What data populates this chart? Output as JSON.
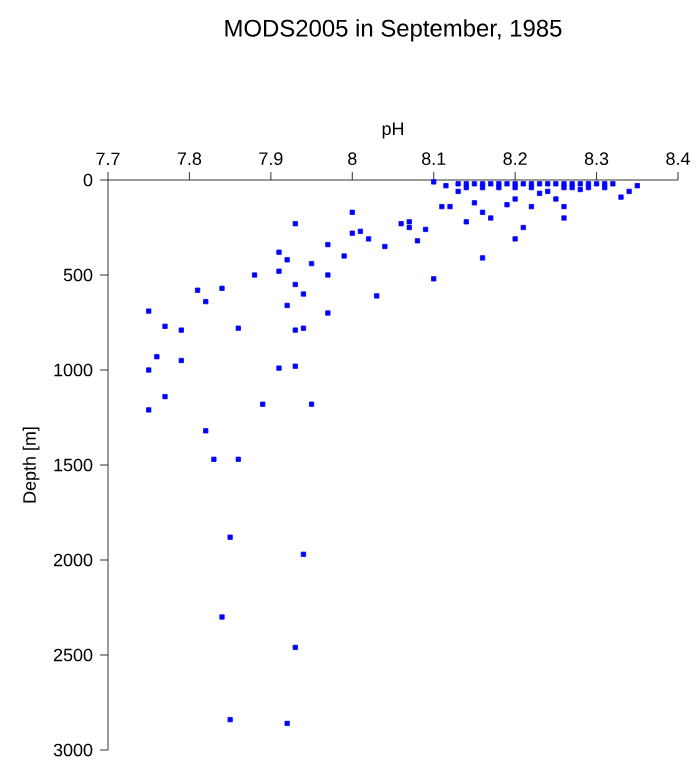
{
  "chart_data": {
    "type": "scatter",
    "title": "MODS2005 in September, 1985",
    "xlabel": "pH",
    "ylabel": "Depth [m]",
    "xlim": [
      7.7,
      8.4
    ],
    "xticks": [
      7.7,
      7.8,
      7.9,
      8,
      8.1,
      8.2,
      8.3,
      8.4
    ],
    "ylim": [
      3000,
      0
    ],
    "yticks": [
      0,
      500,
      1000,
      1500,
      2000,
      2500,
      3000
    ],
    "marker": "square",
    "grid": false,
    "series": [
      {
        "color": "#0000ff",
        "x": [
          8.1,
          8.115,
          8.13,
          8.14,
          8.15,
          8.16,
          8.17,
          8.18,
          8.19,
          8.2,
          8.21,
          8.22,
          8.23,
          8.24,
          8.25,
          8.26,
          8.27,
          8.28,
          8.29,
          8.3,
          8.31,
          8.32,
          8.14,
          8.16,
          8.18,
          8.2,
          8.22,
          8.26,
          8.27,
          8.29,
          8.31,
          8.13,
          8.11,
          8.12,
          8.14,
          8.15,
          8.16,
          8.17,
          8.19,
          8.2,
          8.2,
          8.21,
          8.22,
          8.23,
          8.24,
          8.25,
          8.26,
          8.26,
          8.28,
          8.33,
          8.34,
          8.35,
          8.16,
          8.1,
          8.0,
          8.0,
          8.01,
          8.02,
          8.04,
          8.06,
          8.07,
          8.07,
          8.08,
          8.09,
          7.93,
          7.97,
          7.99,
          7.95,
          7.97,
          7.91,
          7.92,
          7.91,
          7.88,
          7.75,
          7.77,
          7.79,
          7.76,
          7.79,
          7.75,
          7.77,
          7.75,
          7.81,
          7.82,
          7.84,
          7.86,
          7.82,
          7.83,
          7.86,
          7.93,
          7.94,
          7.92,
          7.93,
          7.94,
          7.97,
          8.03,
          7.91,
          7.93,
          7.89,
          7.95,
          7.85,
          7.94,
          7.84,
          7.93,
          7.85,
          7.92
        ],
        "values": [
          10,
          30,
          20,
          20,
          20,
          20,
          20,
          20,
          20,
          20,
          20,
          20,
          20,
          20,
          20,
          20,
          20,
          20,
          20,
          20,
          20,
          20,
          40,
          40,
          40,
          40,
          40,
          40,
          40,
          40,
          40,
          60,
          140,
          140,
          220,
          120,
          170,
          200,
          130,
          100,
          310,
          250,
          140,
          70,
          60,
          100,
          200,
          140,
          50,
          90,
          60,
          30,
          410,
          520,
          170,
          280,
          270,
          310,
          350,
          230,
          220,
          250,
          320,
          260,
          230,
          340,
          400,
          440,
          500,
          380,
          420,
          480,
          500,
          690,
          770,
          790,
          930,
          950,
          1000,
          1140,
          1210,
          580,
          640,
          570,
          780,
          1320,
          1470,
          1470,
          550,
          600,
          660,
          790,
          780,
          700,
          610,
          990,
          980,
          1180,
          1180,
          1880,
          1970,
          2300,
          2460,
          2840,
          2860
        ]
      }
    ]
  }
}
